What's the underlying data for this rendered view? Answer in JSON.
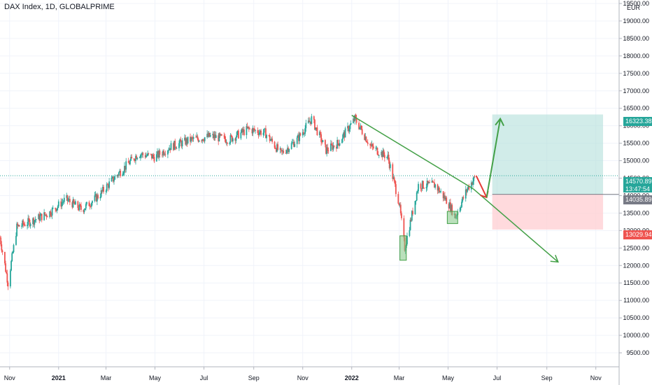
{
  "header": {
    "title": "DAX Index, 1D, GLOBALPRIME"
  },
  "axis": {
    "currency": "EUR"
  },
  "price_tags": {
    "target": "16323.38",
    "current_price": "14570.89",
    "current_time": "13:47:54",
    "entry": "14035.89",
    "stop": "13029.94"
  },
  "colors": {
    "up": "#26a69a",
    "down": "#ef5350",
    "trendline": "#43a047",
    "arrow_up": "#43a047",
    "arrow_down": "#e53935",
    "profit_zone": "#b2dfdb",
    "loss_zone": "#ffcdd2"
  },
  "chart_data": {
    "type": "candlestick",
    "ylim": [
      9100,
      19600
    ],
    "y_ticks": [
      "9500.00",
      "10000.00",
      "10500.00",
      "11000.00",
      "11500.00",
      "12000.00",
      "12500.00",
      "13000.00",
      "13500.00",
      "14000.00",
      "14500.00",
      "15000.00",
      "15500.00",
      "16000.00",
      "16500.00",
      "17000.00",
      "17500.00",
      "18000.00",
      "18500.00",
      "19000.00",
      "19500.00"
    ],
    "x_ticks": [
      "Nov",
      "2021",
      "Mar",
      "May",
      "Jul",
      "Sep",
      "Nov",
      "2022",
      "Mar",
      "May",
      "Jul",
      "Sep",
      "Nov"
    ],
    "xlim": [
      "2020-10-20",
      "2022-11-30"
    ],
    "price_path": [
      [
        "2020-10-20",
        12800
      ],
      [
        "2020-10-30",
        11500
      ],
      [
        "2020-11-10",
        13100
      ],
      [
        "2020-12-01",
        13300
      ],
      [
        "2020-12-20",
        13500
      ],
      [
        "2021-01-10",
        13900
      ],
      [
        "2021-01-30",
        13600
      ],
      [
        "2021-02-20",
        14000
      ],
      [
        "2021-03-15",
        14600
      ],
      [
        "2021-04-10",
        15200
      ],
      [
        "2021-05-01",
        15100
      ],
      [
        "2021-05-20",
        15400
      ],
      [
        "2021-06-15",
        15600
      ],
      [
        "2021-07-10",
        15700
      ],
      [
        "2021-08-01",
        15600
      ],
      [
        "2021-08-25",
        15900
      ],
      [
        "2021-09-15",
        15800
      ],
      [
        "2021-10-05",
        15200
      ],
      [
        "2021-10-25",
        15600
      ],
      [
        "2021-11-12",
        16200
      ],
      [
        "2021-11-30",
        15300
      ],
      [
        "2021-12-15",
        15500
      ],
      [
        "2022-01-05",
        16200
      ],
      [
        "2022-01-25",
        15400
      ],
      [
        "2022-02-15",
        15100
      ],
      [
        "2022-03-01",
        13800
      ],
      [
        "2022-03-08",
        12500
      ],
      [
        "2022-03-25",
        14300
      ],
      [
        "2022-04-15",
        14300
      ],
      [
        "2022-05-01",
        13800
      ],
      [
        "2022-05-10",
        13400
      ],
      [
        "2022-05-25",
        14200
      ],
      [
        "2022-06-05",
        14571
      ]
    ],
    "annotations": {
      "trendline": [
        [
          "2022-01-01",
          16300
        ],
        [
          "2022-06-01",
          14200
        ]
      ],
      "trendline_extension": [
        [
          "2022-06-01",
          14200
        ],
        [
          "2022-09-15",
          12100
        ]
      ],
      "entry_price": 14035.89,
      "target_price": 16323.38,
      "stop_price": 13029.94,
      "forecast_down": [
        [
          "2022-06-05",
          14571
        ],
        [
          "2022-06-18",
          13950
        ]
      ],
      "forecast_up": [
        [
          "2022-06-18",
          13950
        ],
        [
          "2022-07-05",
          16200
        ]
      ],
      "support_boxes": [
        {
          "start": "2022-03-02",
          "end": "2022-03-10",
          "low": 12150,
          "high": 12850
        },
        {
          "start": "2022-04-30",
          "end": "2022-05-13",
          "low": 13200,
          "high": 13550
        }
      ]
    }
  }
}
